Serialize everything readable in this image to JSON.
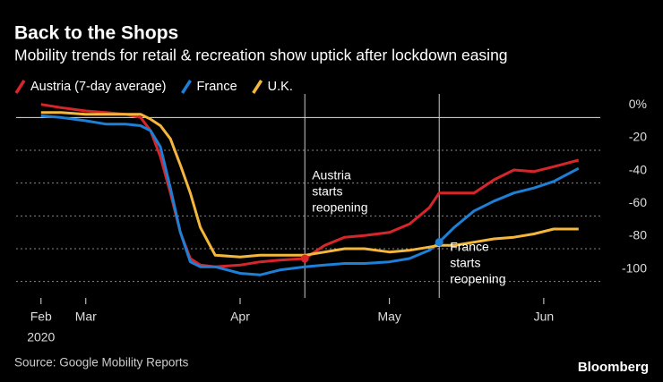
{
  "chart_data": {
    "type": "line",
    "title": "Back to the Shops",
    "subtitle": "Mobility trends for retail & recreation show uptick after lockdown easing",
    "source": "Source: Google Mobility Reports",
    "brand": "Bloomberg",
    "x": [
      "2020-02-21",
      "2020-02-25",
      "2020-03-01",
      "2020-03-05",
      "2020-03-09",
      "2020-03-12",
      "2020-03-14",
      "2020-03-16",
      "2020-03-18",
      "2020-03-20",
      "2020-03-22",
      "2020-03-24",
      "2020-03-27",
      "2020-04-01",
      "2020-04-05",
      "2020-04-09",
      "2020-04-14",
      "2020-04-18",
      "2020-04-22",
      "2020-04-26",
      "2020-05-01",
      "2020-05-05",
      "2020-05-09",
      "2020-05-11",
      "2020-05-14",
      "2020-05-18",
      "2020-05-22",
      "2020-05-26",
      "2020-05-30",
      "2020-06-03",
      "2020-06-08"
    ],
    "series": [
      {
        "name": "Austria (7-day average)",
        "color": "#d7262b",
        "values": [
          8,
          6,
          4,
          3,
          2,
          0,
          -8,
          -24,
          -46,
          -70,
          -86,
          -90,
          -91,
          -90,
          -88,
          -87,
          -86,
          -78,
          -73,
          -72,
          -70,
          -65,
          -55,
          -46,
          -46,
          -46,
          -38,
          -32,
          -33,
          -30,
          -26
        ]
      },
      {
        "name": "France",
        "color": "#1d7fd6",
        "values": [
          1,
          0,
          -2,
          -4,
          -4,
          -5,
          -8,
          -18,
          -43,
          -70,
          -88,
          -91,
          -91,
          -95,
          -96,
          -93,
          -91,
          -90,
          -89,
          -89,
          -88,
          -86,
          -81,
          -76,
          -67,
          -57,
          -51,
          -46,
          -43,
          -39,
          -31
        ]
      },
      {
        "name": "U.K.",
        "color": "#f5b63c",
        "values": [
          3,
          3,
          2,
          2,
          2,
          2,
          -1,
          -5,
          -13,
          -29,
          -46,
          -67,
          -84,
          -85,
          -84,
          -84,
          -84,
          -82,
          -80,
          -80,
          -82,
          -81,
          -79,
          -78,
          -78,
          -76,
          -74,
          -73,
          -71,
          -68,
          -68
        ]
      }
    ],
    "xlim": [
      "2020-02-16",
      "2020-06-12"
    ],
    "xticks": [
      {
        "value": "2020-02-21",
        "label": "Feb"
      },
      {
        "value": "2020-03-01",
        "label": "Mar"
      },
      {
        "value": "2020-04-01",
        "label": "Apr"
      },
      {
        "value": "2020-05-01",
        "label": "May"
      },
      {
        "value": "2020-06-01",
        "label": "Jun"
      }
    ],
    "x_sublabel": "2020",
    "ylim": [
      -110,
      10
    ],
    "yticks": [
      {
        "value": 0,
        "label": "0%"
      },
      -20,
      -40,
      -60,
      -80,
      -100
    ],
    "grid": true,
    "annotations": [
      {
        "lines": [
          "Austria",
          "starts",
          "reopening"
        ],
        "x": "2020-04-14",
        "y": -86,
        "series": 0
      },
      {
        "lines": [
          "France",
          "starts",
          "reopening"
        ],
        "x": "2020-05-11",
        "y": -76,
        "series": 1
      }
    ]
  }
}
